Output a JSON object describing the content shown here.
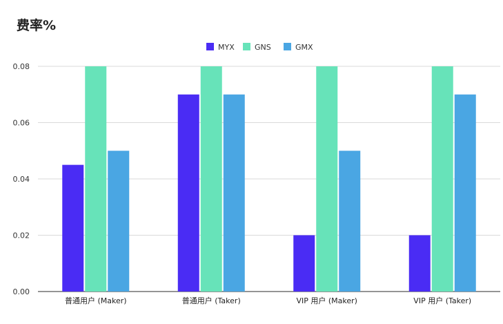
{
  "chart_data": {
    "type": "bar",
    "title": "费率%",
    "categories": [
      "普通用户 (Maker)",
      "普通用户 (Taker)",
      "VIP 用户 (Maker)",
      "VIP 用户 (Taker)"
    ],
    "series": [
      {
        "name": "MYX",
        "color": "#4a2cf4",
        "values": [
          0.045,
          0.07,
          0.02,
          0.02
        ]
      },
      {
        "name": "GNS",
        "color": "#67e3b9",
        "values": [
          0.08,
          0.08,
          0.08,
          0.08
        ]
      },
      {
        "name": "GMX",
        "color": "#4aa6e3",
        "values": [
          0.05,
          0.07,
          0.05,
          0.07
        ]
      }
    ],
    "y_ticks": [
      "0.00",
      "0.02",
      "0.04",
      "0.06",
      "0.08"
    ],
    "ylim": [
      0,
      0.08
    ],
    "grid": true,
    "legend_position": "top-center",
    "xlabel": "",
    "ylabel": ""
  }
}
